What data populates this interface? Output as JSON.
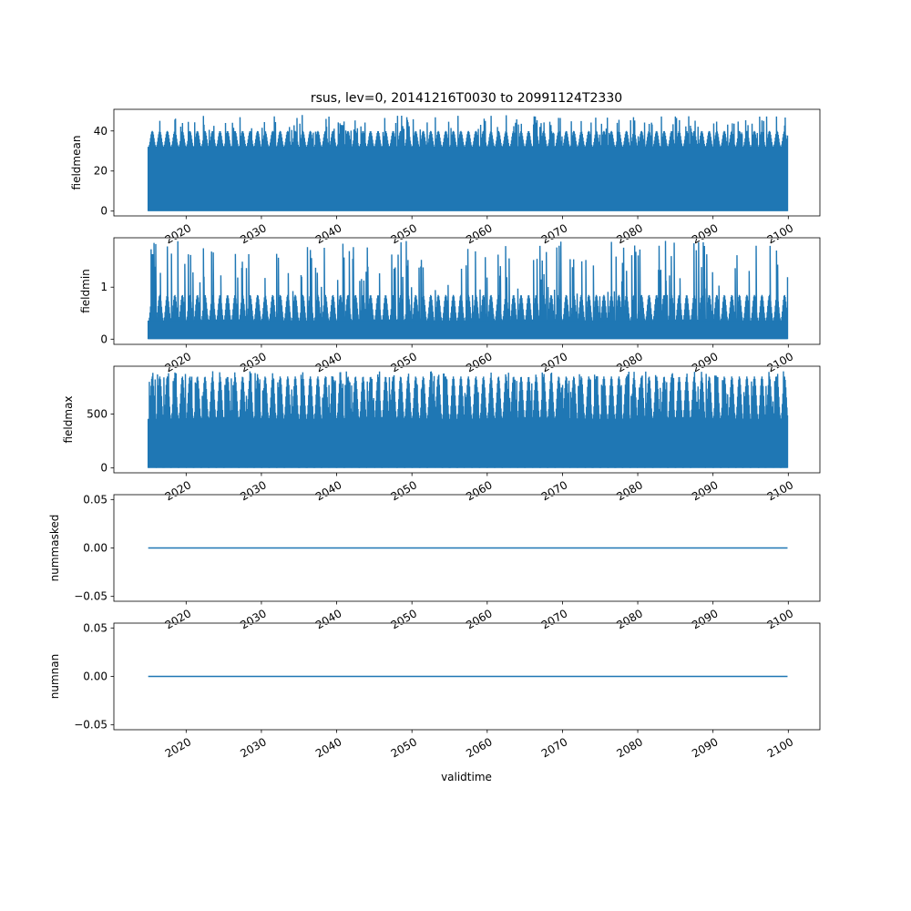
{
  "title": "rsus, lev=0, 20141216T0030 to 20991124T2330",
  "xlabel": "validtime",
  "colors": {
    "series": "#1f77b4",
    "axis": "#000000",
    "background": "#ffffff"
  },
  "chart_data": [
    {
      "type": "line",
      "ylabel": "fieldmean",
      "x_range": [
        "2014-12-16",
        "2099-11-24"
      ],
      "xlim": [
        2010.4,
        2104.2
      ],
      "ylim": [
        -2.4,
        50.8
      ],
      "xticks": [
        2020,
        2030,
        2040,
        2050,
        2060,
        2070,
        2080,
        2090,
        2100
      ],
      "yticks": [
        0,
        20,
        40
      ],
      "ytick_labels": [
        "0",
        "20",
        "40"
      ],
      "signal": {
        "min": 0,
        "cycle_base": 36,
        "cycle_amplitude": 4,
        "spike_max": 48
      },
      "grid": false
    },
    {
      "type": "line",
      "ylabel": "fieldmin",
      "xlim": [
        2010.4,
        2104.2
      ],
      "ylim": [
        -0.1,
        1.95
      ],
      "xticks": [
        2020,
        2030,
        2040,
        2050,
        2060,
        2070,
        2080,
        2090,
        2100
      ],
      "yticks": [
        0,
        1
      ],
      "ytick_labels": [
        "0",
        "1"
      ],
      "signal": {
        "min": 0,
        "cycle_base": 0.6,
        "cycle_amplitude": 0.25,
        "spike_max": 1.9
      },
      "grid": false
    },
    {
      "type": "line",
      "ylabel": "fieldmax",
      "xlim": [
        2010.4,
        2104.2
      ],
      "ylim": [
        -45,
        945
      ],
      "xticks": [
        2020,
        2030,
        2040,
        2050,
        2060,
        2070,
        2080,
        2090,
        2100
      ],
      "yticks": [
        0,
        500
      ],
      "ytick_labels": [
        "0",
        "500"
      ],
      "signal": {
        "min": 0,
        "cycle_base": 650,
        "cycle_amplitude": 200,
        "spike_max": 900
      },
      "grid": false
    },
    {
      "type": "line",
      "ylabel": "nummasked",
      "xlim": [
        2010.4,
        2104.2
      ],
      "ylim": [
        -0.055,
        0.055
      ],
      "xticks": [
        2020,
        2030,
        2040,
        2050,
        2060,
        2070,
        2080,
        2090,
        2100
      ],
      "yticks": [
        -0.05,
        0.0,
        0.05
      ],
      "ytick_labels": [
        "−0.05",
        "0.00",
        "0.05"
      ],
      "x": [
        2014.96,
        2099.9
      ],
      "y": [
        0,
        0
      ],
      "grid": false
    },
    {
      "type": "line",
      "ylabel": "numnan",
      "xlim": [
        2010.4,
        2104.2
      ],
      "ylim": [
        -0.055,
        0.055
      ],
      "xticks": [
        2020,
        2030,
        2040,
        2050,
        2060,
        2070,
        2080,
        2090,
        2100
      ],
      "yticks": [
        -0.05,
        0.0,
        0.05
      ],
      "ytick_labels": [
        "−0.05",
        "0.00",
        "0.05"
      ],
      "x": [
        2014.96,
        2099.9
      ],
      "y": [
        0,
        0
      ],
      "grid": false
    }
  ]
}
